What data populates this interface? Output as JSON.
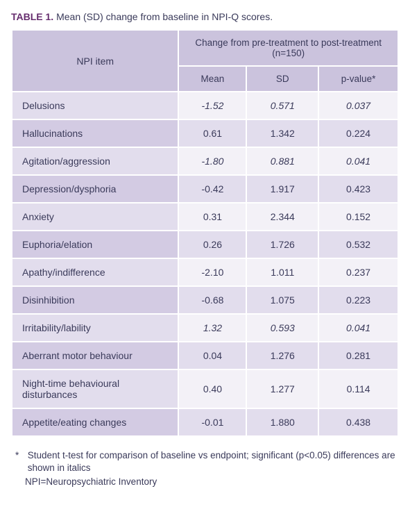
{
  "caption": {
    "label": "TABLE 1.",
    "text": "Mean (SD) change from baseline in NPI-Q scores."
  },
  "headers": {
    "npi_item": "NPI item",
    "group": "Change from pre-treatment to post-treatment (n=150)",
    "mean": "Mean",
    "sd": "SD",
    "pvalue": "p-value*"
  },
  "rows": [
    {
      "item": "Delusions",
      "mean": "-1.52",
      "sd": "0.571",
      "p": "0.037",
      "sig": true
    },
    {
      "item": "Hallucinations",
      "mean": "0.61",
      "sd": "1.342",
      "p": "0.224",
      "sig": false
    },
    {
      "item": "Agitation/aggression",
      "mean": "-1.80",
      "sd": "0.881",
      "p": "0.041",
      "sig": true
    },
    {
      "item": "Depression/dysphoria",
      "mean": "-0.42",
      "sd": "1.917",
      "p": "0.423",
      "sig": false
    },
    {
      "item": "Anxiety",
      "mean": "0.31",
      "sd": "2.344",
      "p": "0.152",
      "sig": false
    },
    {
      "item": "Euphoria/elation",
      "mean": "0.26",
      "sd": "1.726",
      "p": "0.532",
      "sig": false
    },
    {
      "item": "Apathy/indifference",
      "mean": "-2.10",
      "sd": "1.011",
      "p": "0.237",
      "sig": false
    },
    {
      "item": "Disinhibition",
      "mean": "-0.68",
      "sd": "1.075",
      "p": "0.223",
      "sig": false
    },
    {
      "item": "Irritability/lability",
      "mean": "1.32",
      "sd": "0.593",
      "p": "0.041",
      "sig": true
    },
    {
      "item": "Aberrant motor behaviour",
      "mean": "0.04",
      "sd": "1.276",
      "p": "0.281",
      "sig": false
    },
    {
      "item": "Night-time behavioural disturbances",
      "mean": "0.40",
      "sd": "1.277",
      "p": "0.114",
      "sig": false
    },
    {
      "item": "Appetite/eating changes",
      "mean": "-0.01",
      "sd": "1.880",
      "p": "0.438",
      "sig": false
    }
  ],
  "footnote": {
    "asterisk": "*",
    "text": "Student t-test for comparison of baseline vs endpoint; significant (p<0.05) differences are shown in italics",
    "abbr": "NPI=Neuropsychiatric Inventory"
  },
  "colors": {
    "header_bg": "#cbc3dd",
    "item_bg_odd": "#e2dded",
    "item_bg_even": "#d3cbe3",
    "num_bg_odd": "#f3f1f7",
    "num_bg_even": "#e2dded",
    "text": "#3a3a5a",
    "label": "#662d6e",
    "border": "#ffffff"
  }
}
